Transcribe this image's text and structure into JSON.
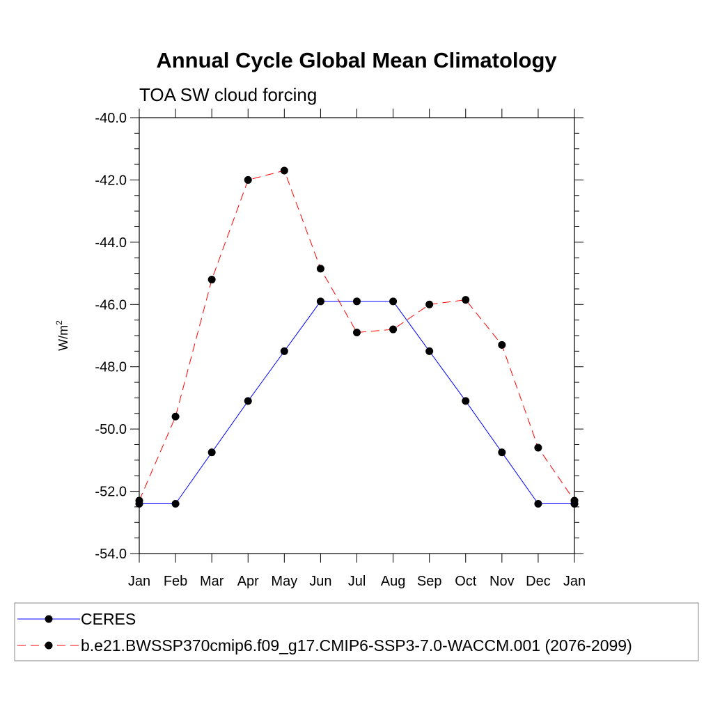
{
  "chart_data": {
    "type": "line",
    "title": "Annual Cycle Global Mean Climatology",
    "subtitle": "TOA SW cloud forcing",
    "ylabel_main": "W/m",
    "ylabel_sup": "2",
    "xlabel": "",
    "categories": [
      "Jan",
      "Feb",
      "Mar",
      "Apr",
      "May",
      "Jun",
      "Jul",
      "Aug",
      "Sep",
      "Oct",
      "Nov",
      "Dec",
      "Jan"
    ],
    "ylim": [
      -54.0,
      -40.0
    ],
    "yticks": [
      "-40.0",
      "-42.0",
      "-44.0",
      "-46.0",
      "-48.0",
      "-50.0",
      "-52.0",
      "-54.0"
    ],
    "ytick_values": [
      -40,
      -42,
      -44,
      -46,
      -48,
      -50,
      -52,
      -54
    ],
    "grid": false,
    "legend_position": "bottom",
    "series": [
      {
        "name": "CERES",
        "color": "#0000ff",
        "dash": "solid",
        "values": [
          -52.4,
          -52.4,
          -50.75,
          -49.1,
          -47.5,
          -45.9,
          -45.9,
          -45.9,
          -47.5,
          -49.1,
          -50.75,
          -52.4,
          -52.4
        ]
      },
      {
        "name": "b.e21.BWSSP370cmip6.f09_g17.CMIP6-SSP3-7.0-WACCM.001 (2076-2099)",
        "color": "#ff0000",
        "dash": "dashed",
        "values": [
          -52.3,
          -49.6,
          -45.2,
          -42.0,
          -41.7,
          -44.85,
          -46.9,
          -46.8,
          -46.0,
          -45.85,
          -47.3,
          -50.6,
          -52.3
        ]
      }
    ]
  }
}
